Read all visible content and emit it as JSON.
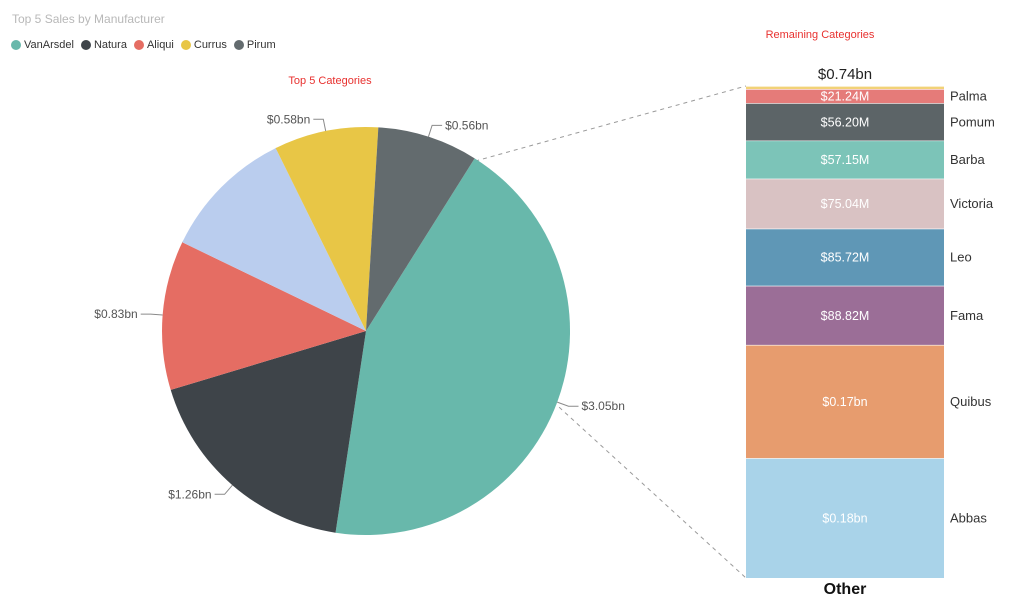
{
  "title": "Top 5 Sales by Manufacturer",
  "chart_data": [
    {
      "type": "pie",
      "title": "Top 5 Categories",
      "categories": [
        "VanArsdel",
        "Natura",
        "Aliqui",
        "Other",
        "Currus",
        "Pirum"
      ],
      "values": [
        3.05,
        1.26,
        0.83,
        0.74,
        0.58,
        0.56
      ],
      "labels": [
        "$3.05bn",
        "$1.26bn",
        "$0.83bn",
        "",
        "$0.58bn",
        "$0.56bn"
      ],
      "colors": [
        "#68b8ab",
        "#3e4449",
        "#e56d63",
        "#bacdee",
        "#e8c646",
        "#636b6e"
      ],
      "legend": {
        "placement": "top-left",
        "entries": [
          {
            "name": "VanArsdel",
            "color": "#68b8ab"
          },
          {
            "name": "Natura",
            "color": "#3e4449"
          },
          {
            "name": "Aliqui",
            "color": "#e56d63"
          },
          {
            "name": "Currus",
            "color": "#e8c646"
          },
          {
            "name": "Pirum",
            "color": "#636b6e"
          }
        ]
      }
    },
    {
      "type": "bar",
      "stacked": true,
      "title": "Remaining Categories",
      "total_label": "$0.74bn",
      "category_label": "Other",
      "segments": [
        {
          "name": "Abbas",
          "value": 0.18,
          "label": "$0.18bn",
          "color": "#a9d3e9"
        },
        {
          "name": "Quibus",
          "value": 0.17,
          "label": "$0.17bn",
          "color": "#e79c6e"
        },
        {
          "name": "Fama",
          "value": 0.08882,
          "label": "$88.82M",
          "color": "#9b6e97"
        },
        {
          "name": "Leo",
          "value": 0.08572,
          "label": "$85.72M",
          "color": "#5f97b6"
        },
        {
          "name": "Victoria",
          "value": 0.07504,
          "label": "$75.04M",
          "color": "#d9c2c3"
        },
        {
          "name": "Barba",
          "value": 0.05715,
          "label": "$57.15M",
          "color": "#7cc4b8"
        },
        {
          "name": "Pomum",
          "value": 0.0562,
          "label": "$56.20M",
          "color": "#5c6467"
        },
        {
          "name": "Palma",
          "value": 0.02124,
          "label": "$21.24M",
          "color": "#e57b79"
        },
        {
          "name": "",
          "value": 0.0045,
          "label": "",
          "color": "#f2d277"
        }
      ]
    }
  ]
}
